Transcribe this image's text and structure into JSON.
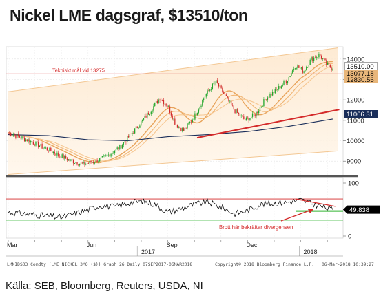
{
  "header": {
    "title": "Nickel LME dagsgraf, $13510/ton"
  },
  "footer": {
    "bloomberg_line_left": "LMNIDS03 Comdty (LME NICKEL  3MO ($)) Graph 26  Daily 07SEP2017-06MAR2018",
    "bloomberg_line_mid": "Copyright© 2018 Bloomberg Finance L.P.",
    "bloomberg_line_right": "06-Mar-2018 10:39:27",
    "source": "Källa: SEB, Bloomberg, Reuters, USDA, NI"
  },
  "chart_data": [
    {
      "type": "candlestick",
      "title": "Nickel LME dagsgraf, $13510/ton",
      "ylim": [
        8300,
        14600
      ],
      "y_ticks": [
        9000,
        10000,
        11000,
        12000,
        13000,
        14000
      ],
      "y_tick_labels": [
        "9000",
        "10000",
        "11000",
        "12000",
        "13000",
        "14000"
      ],
      "x_labels": [
        "Mar",
        "Jun",
        "Sep",
        "Dec"
      ],
      "x_year_labels": [
        "2017",
        "2018"
      ],
      "price_labels": [
        {
          "value": 13510,
          "text": "13510.00",
          "color": "#000000"
        },
        {
          "value": 13077.18,
          "text": "13077.18",
          "color": "#e8b67a"
        },
        {
          "value": 12830.56,
          "text": "12830.56",
          "color": "#e8b67a"
        },
        {
          "value": 11066.31,
          "text": "11066.31",
          "color": "#1a2e5a"
        }
      ],
      "annotations": [
        {
          "text": "Tekniskt mål vid 13275",
          "value": 13275,
          "color": "#d42a2a"
        }
      ],
      "anchors": [
        {
          "m": 0,
          "v": 10400
        },
        {
          "m": 0.8,
          "v": 10000
        },
        {
          "m": 1.6,
          "v": 9500
        },
        {
          "m": 2.3,
          "v": 9050
        },
        {
          "m": 2.8,
          "v": 8850
        },
        {
          "m": 3.3,
          "v": 9000
        },
        {
          "m": 3.7,
          "v": 9250
        },
        {
          "m": 4.2,
          "v": 9700
        },
        {
          "m": 4.8,
          "v": 10600
        },
        {
          "m": 5.3,
          "v": 11400
        },
        {
          "m": 5.7,
          "v": 12100
        },
        {
          "m": 6.0,
          "v": 11700
        },
        {
          "m": 6.3,
          "v": 10800
        },
        {
          "m": 6.6,
          "v": 10500
        },
        {
          "m": 7.0,
          "v": 11200
        },
        {
          "m": 7.4,
          "v": 12200
        },
        {
          "m": 7.8,
          "v": 12900
        },
        {
          "m": 8.1,
          "v": 12300
        },
        {
          "m": 8.5,
          "v": 11500
        },
        {
          "m": 8.9,
          "v": 11000
        },
        {
          "m": 9.3,
          "v": 11300
        },
        {
          "m": 9.7,
          "v": 12100
        },
        {
          "m": 10.1,
          "v": 12500
        },
        {
          "m": 10.5,
          "v": 13000
        },
        {
          "m": 10.8,
          "v": 13700
        },
        {
          "m": 11.1,
          "v": 13400
        },
        {
          "m": 11.4,
          "v": 14000
        },
        {
          "m": 11.7,
          "v": 14200
        },
        {
          "m": 12.0,
          "v": 13700
        },
        {
          "m": 12.2,
          "v": 13510
        }
      ],
      "resistance_level": 13275,
      "channel": {
        "upper": [
          [
            0,
            12400
          ],
          [
            12.4,
            14550
          ]
        ],
        "lower": [
          [
            0,
            8350
          ],
          [
            12.4,
            9500
          ]
        ]
      },
      "support_trendline": [
        [
          7.1,
          10150
        ],
        [
          12.45,
          11530
        ]
      ],
      "long_ma": [
        [
          0,
          10300
        ],
        [
          1.5,
          10250
        ],
        [
          3,
          10050
        ],
        [
          4.5,
          10000
        ],
        [
          6,
          10200
        ],
        [
          7.5,
          10300
        ],
        [
          9,
          10450
        ],
        [
          10.5,
          10700
        ],
        [
          12.2,
          11066.31
        ]
      ]
    },
    {
      "type": "line",
      "title": "",
      "ylim": [
        0,
        100
      ],
      "y_ticks": [
        0,
        50,
        100
      ],
      "y_tick_labels": [
        "0",
        "50",
        "100"
      ],
      "current_value": 49.838,
      "current_label": "49.838",
      "overbought": 70,
      "oversold": 30,
      "anchors": [
        {
          "m": 0,
          "v": 45
        },
        {
          "m": 1,
          "v": 40
        },
        {
          "m": 2,
          "v": 35
        },
        {
          "m": 2.5,
          "v": 42
        },
        {
          "m": 3,
          "v": 50
        },
        {
          "m": 3.5,
          "v": 58
        },
        {
          "m": 4,
          "v": 55
        },
        {
          "m": 4.5,
          "v": 62
        },
        {
          "m": 5,
          "v": 66
        },
        {
          "m": 5.5,
          "v": 60
        },
        {
          "m": 6,
          "v": 45
        },
        {
          "m": 6.5,
          "v": 52
        },
        {
          "m": 7,
          "v": 60
        },
        {
          "m": 7.5,
          "v": 64
        },
        {
          "m": 8,
          "v": 55
        },
        {
          "m": 8.5,
          "v": 42
        },
        {
          "m": 9,
          "v": 48
        },
        {
          "m": 9.5,
          "v": 60
        },
        {
          "m": 10,
          "v": 62
        },
        {
          "m": 10.5,
          "v": 64
        },
        {
          "m": 11,
          "v": 68
        },
        {
          "m": 11.5,
          "v": 60
        },
        {
          "m": 12.2,
          "v": 49.838
        }
      ],
      "divergence_line": [
        [
          10.8,
          70
        ],
        [
          12.3,
          56
        ]
      ],
      "annotations": [
        {
          "text": "Brott här bekräftar divergensen",
          "color": "#d42a2a"
        }
      ]
    }
  ]
}
